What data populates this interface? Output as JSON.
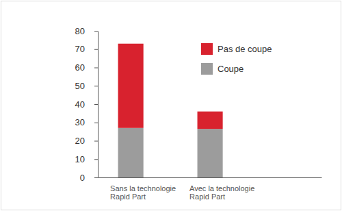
{
  "chart_data": {
    "type": "bar",
    "stacked": true,
    "categories": [
      "Sans la technologie\nRapid Part",
      "Avec la technologie\nRapid Part"
    ],
    "series": [
      {
        "name": "Coupe",
        "color": "#9c9c9c",
        "values": [
          27,
          26.5
        ]
      },
      {
        "name": "Pas de coupe",
        "color": "#d8222e",
        "values": [
          46,
          9.5
        ]
      }
    ],
    "ylim": [
      0,
      80
    ],
    "yticks": [
      0,
      10,
      20,
      30,
      40,
      50,
      60,
      70,
      80
    ],
    "grid": false,
    "legend": "upper right"
  }
}
